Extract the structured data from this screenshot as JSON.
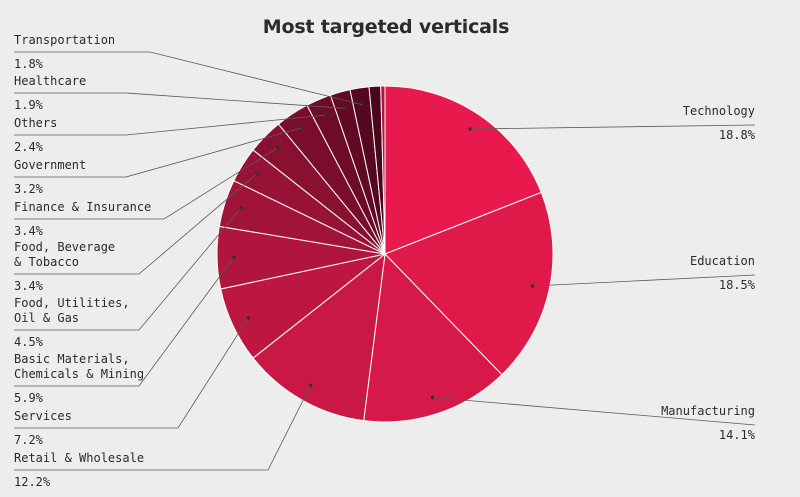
{
  "chart_data": {
    "type": "pie",
    "title": "Most targeted verticals",
    "slices": [
      {
        "label": "Technology",
        "value": 18.8,
        "display": "18.8%",
        "color": "#e8194c"
      },
      {
        "label": "Education",
        "value": 18.5,
        "display": "18.5%",
        "color": "#df1a4b"
      },
      {
        "label": "Manufacturing",
        "value": 14.1,
        "display": "14.1%",
        "color": "#d61948"
      },
      {
        "label": "Retail & Wholesale",
        "value": 12.2,
        "display": "12.2%",
        "color": "#ca1845"
      },
      {
        "label": "Services",
        "value": 7.2,
        "display": "7.2%",
        "color": "#bd1641"
      },
      {
        "label": "Basic Materials,\nChemicals & Mining",
        "value": 5.9,
        "display": "5.9%",
        "color": "#b0153d"
      },
      {
        "label": "Food, Utilities,\nOil & Gas",
        "value": 4.5,
        "display": "4.5%",
        "color": "#a21339"
      },
      {
        "label": "Food, Beverage\n& Tobacco",
        "value": 3.4,
        "display": "3.4%",
        "color": "#961236"
      },
      {
        "label": "Finance & Insurance",
        "value": 3.4,
        "display": "3.4%",
        "color": "#881031"
      },
      {
        "label": "Government",
        "value": 3.2,
        "display": "3.2%",
        "color": "#7a0d2c"
      },
      {
        "label": "Others",
        "value": 2.4,
        "display": "2.4%",
        "color": "#6e0b28"
      },
      {
        "label": "Healthcare",
        "value": 1.9,
        "display": "1.9%",
        "color": "#620a23"
      },
      {
        "label": "Transportation",
        "value": 1.8,
        "display": "1.8%",
        "color": "#55081f"
      },
      {
        "label": "",
        "value": 1.1,
        "display": "",
        "color": "#4a061b"
      },
      {
        "label": "",
        "value": 0.4,
        "display": "",
        "color": "#b5123e"
      }
    ],
    "legend": "none",
    "label_style": "leader lines with name and percentage"
  }
}
